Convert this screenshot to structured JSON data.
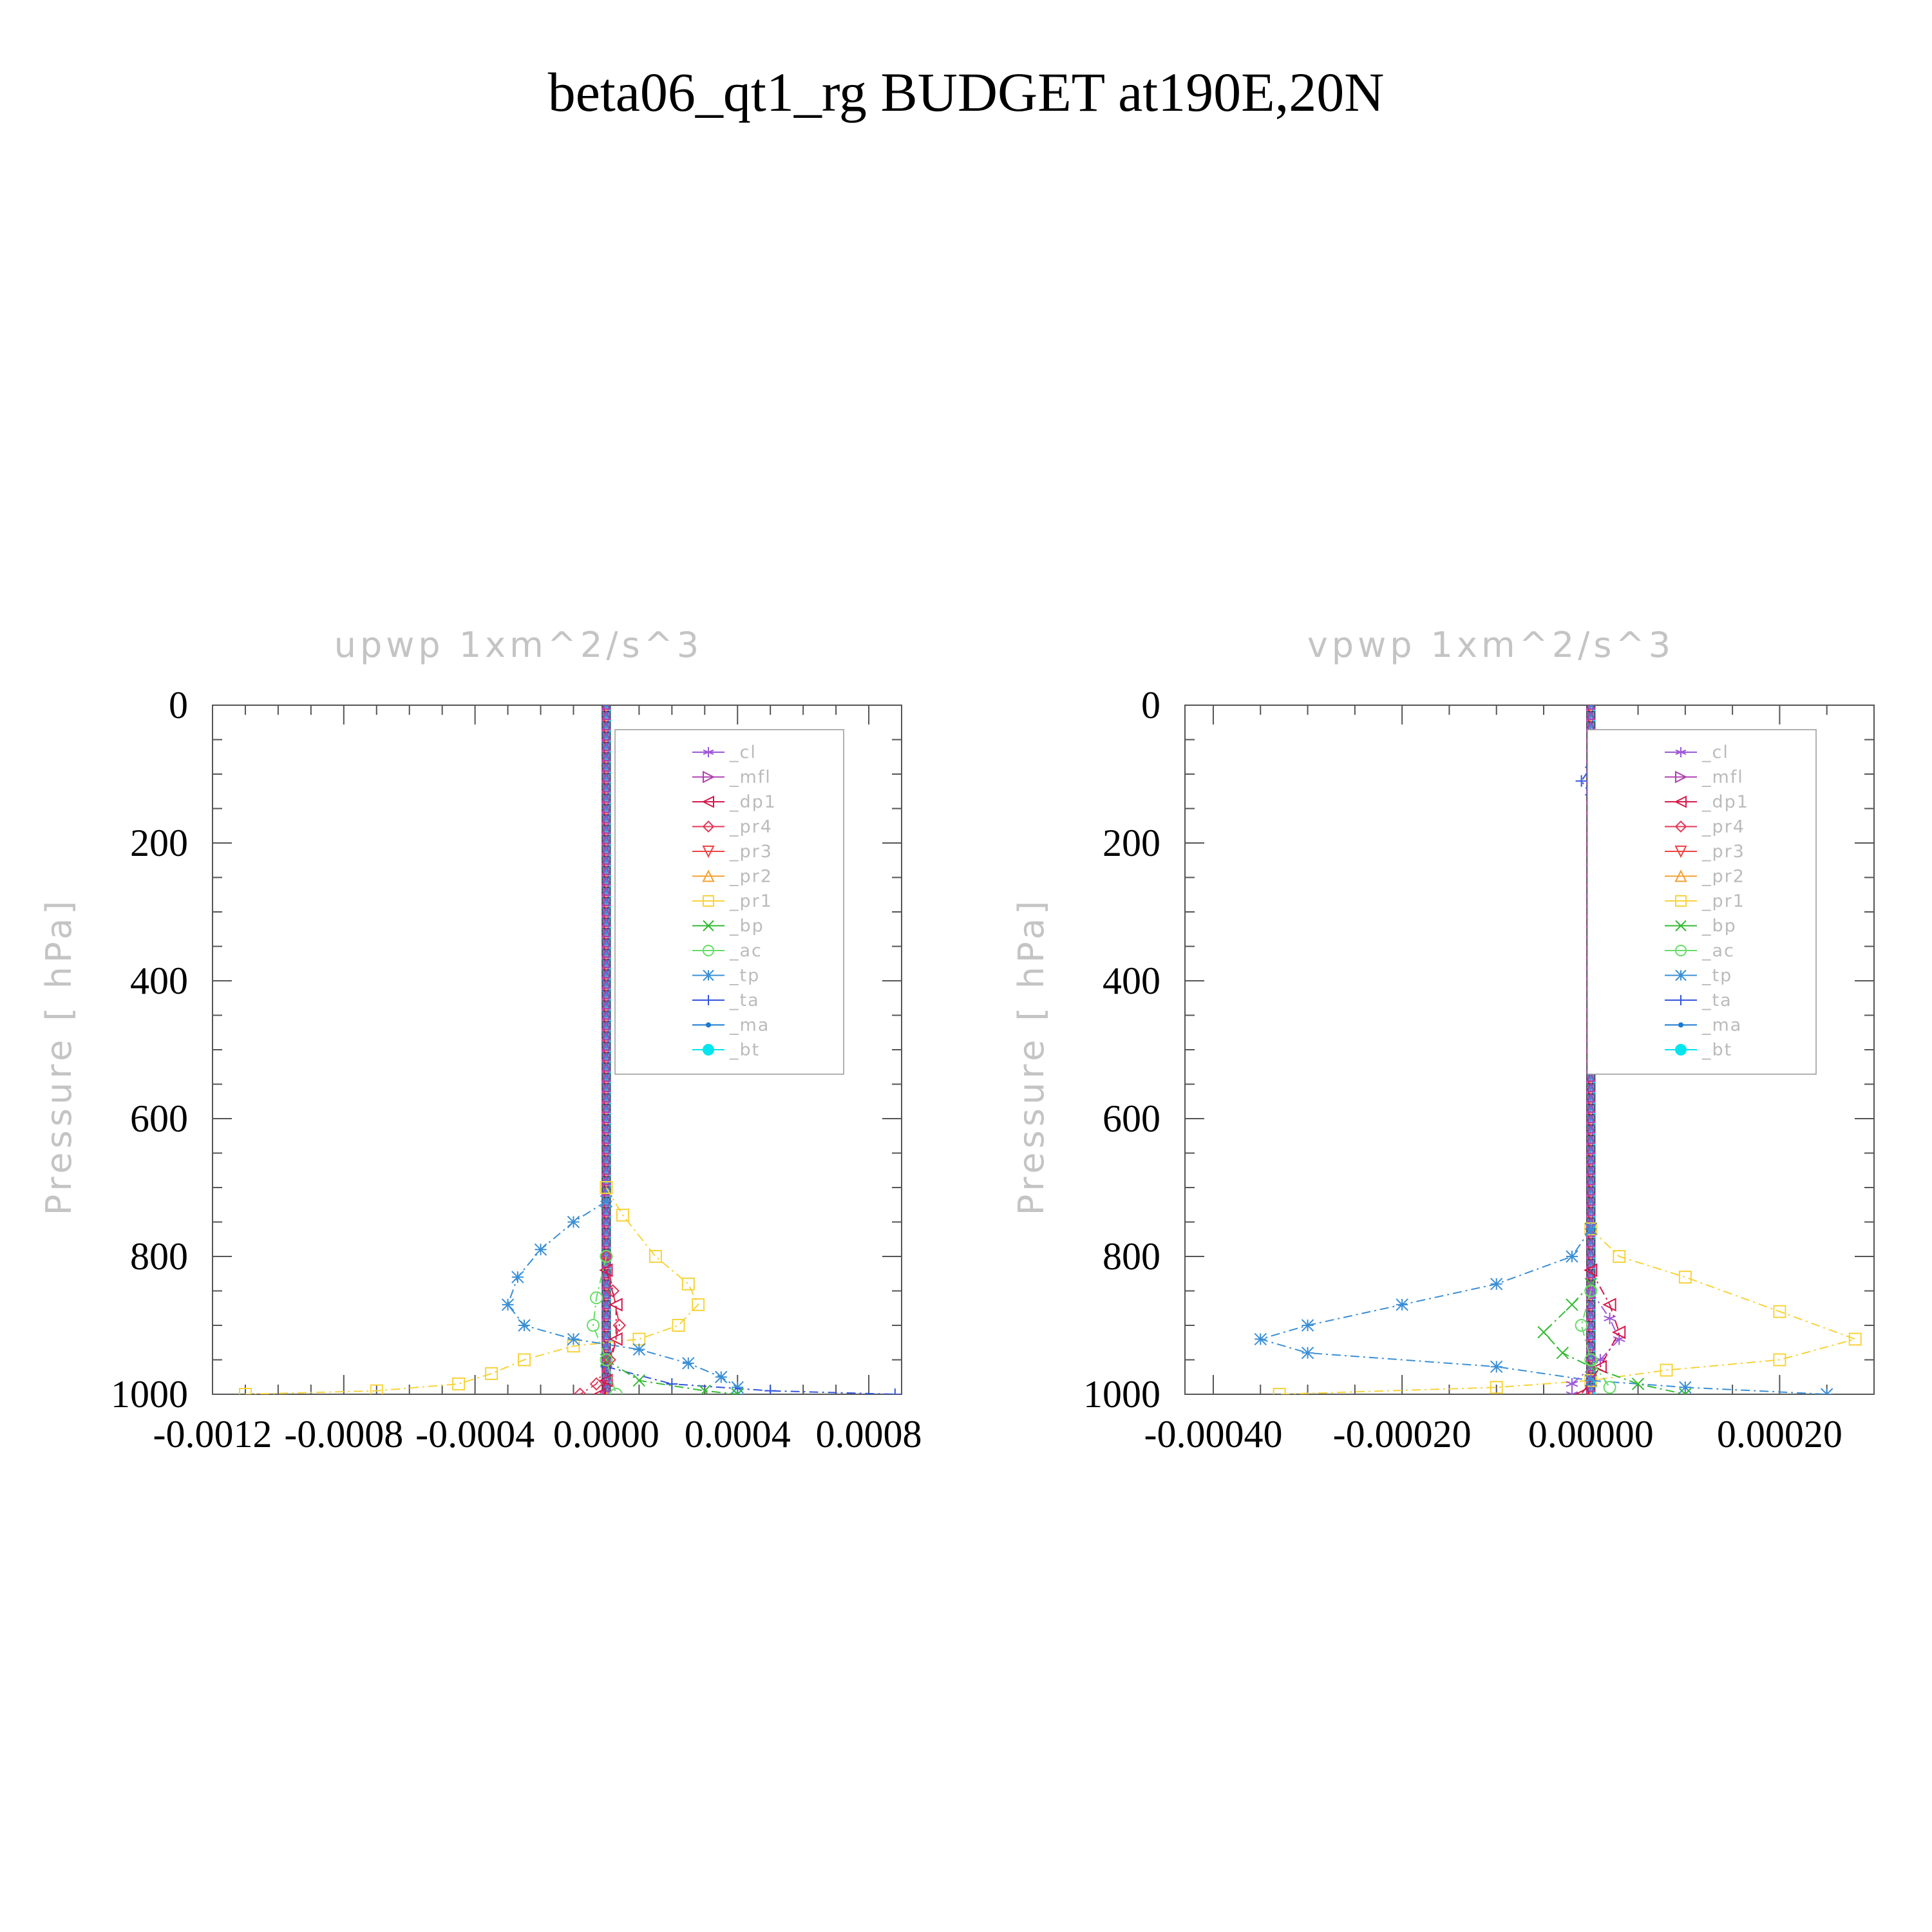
{
  "figure_title": "beta06_qt1_rg  BUDGET at190E,20N",
  "colors": {
    "_cl": "#9b59d6",
    "_mfl": "#b040b0",
    "_dp1": "#d6184a",
    "_pr4": "#e03a5a",
    "_pr3": "#ee4444",
    "_pr2": "#f5a033",
    "_pr1": "#f7d33a",
    "_bp": "#33bb33",
    "_ac": "#66dd66",
    "_tp": "#3a8fd6",
    "_ta": "#3355dd",
    "_ma": "#1a7ad0",
    "_bt": "#00e5ee"
  },
  "legend": {
    "entries": [
      {
        "key": "_cl",
        "marker": "star"
      },
      {
        "key": "_mfl",
        "marker": "tri-right"
      },
      {
        "key": "_dp1",
        "marker": "tri-left"
      },
      {
        "key": "_pr4",
        "marker": "diamond"
      },
      {
        "key": "_pr3",
        "marker": "tri-down"
      },
      {
        "key": "_pr2",
        "marker": "tri-up"
      },
      {
        "key": "_pr1",
        "marker": "square"
      },
      {
        "key": "_bp",
        "marker": "x"
      },
      {
        "key": "_ac",
        "marker": "circle"
      },
      {
        "key": "_tp",
        "marker": "asterisk"
      },
      {
        "key": "_ta",
        "marker": "plus"
      },
      {
        "key": "_ma",
        "marker": "dot"
      },
      {
        "key": "_bt",
        "marker": "filled-circle"
      }
    ]
  },
  "chart_data": [
    {
      "type": "line",
      "title": "upwp   1xm^2/s^3",
      "ylabel": "Pressure [ hPa]",
      "xlabel": "",
      "xlim": [
        -0.0012,
        0.0009
      ],
      "ylim": [
        1000,
        0
      ],
      "xticks": [
        -0.0012,
        -0.0008,
        -0.0004,
        0.0,
        0.0004,
        0.0008
      ],
      "xtick_labels": [
        "-0.0012",
        "-0.0008",
        "-0.0004",
        "0.0000",
        "0.0004",
        "0.0008"
      ],
      "yticks": [
        0,
        200,
        400,
        600,
        800,
        1000
      ],
      "ytick_labels": [
        "0",
        "200",
        "400",
        "600",
        "800",
        "1000"
      ],
      "legend_position": "upper-right",
      "series": [
        {
          "name": "_pr1",
          "points": [
            [
              0,
              700
            ],
            [
              5e-05,
              740
            ],
            [
              0.00015,
              800
            ],
            [
              0.00025,
              840
            ],
            [
              0.00028,
              870
            ],
            [
              0.00022,
              900
            ],
            [
              0.0001,
              920
            ],
            [
              -0.0001,
              930
            ],
            [
              -0.00025,
              950
            ],
            [
              -0.00035,
              970
            ],
            [
              -0.00045,
              985
            ],
            [
              -0.0007,
              995
            ],
            [
              -0.0011,
              1000
            ]
          ]
        },
        {
          "name": "_tp",
          "points": [
            [
              0,
              720
            ],
            [
              -0.0001,
              750
            ],
            [
              -0.0002,
              790
            ],
            [
              -0.00027,
              830
            ],
            [
              -0.0003,
              870
            ],
            [
              -0.00025,
              900
            ],
            [
              -0.0001,
              920
            ],
            [
              0.0001,
              935
            ],
            [
              0.00025,
              955
            ],
            [
              0.00035,
              975
            ],
            [
              0.0004,
              990
            ],
            [
              0.0004,
              1000
            ]
          ]
        },
        {
          "name": "_ta",
          "points": [
            [
              0,
              960
            ],
            [
              0.0002,
              985
            ],
            [
              0.0005,
              995
            ],
            [
              0.00088,
              1000
            ]
          ]
        },
        {
          "name": "_bp",
          "points": [
            [
              0,
              950
            ],
            [
              0.0001,
              980
            ],
            [
              0.0003,
              995
            ],
            [
              0.0004,
              1000
            ]
          ]
        },
        {
          "name": "_pr4",
          "points": [
            [
              0,
              800
            ],
            [
              2e-05,
              850
            ],
            [
              4e-05,
              900
            ],
            [
              1e-05,
              950
            ],
            [
              -3e-05,
              985
            ],
            [
              -8e-05,
              1000
            ]
          ]
        },
        {
          "name": "_dp1",
          "points": [
            [
              0,
              820
            ],
            [
              3e-05,
              870
            ],
            [
              3e-05,
              920
            ],
            [
              0,
              980
            ],
            [
              -2e-05,
              1000
            ]
          ]
        },
        {
          "name": "_ac",
          "points": [
            [
              0,
              800
            ],
            [
              -3e-05,
              860
            ],
            [
              -4e-05,
              900
            ],
            [
              0,
              950
            ],
            [
              3e-05,
              1000
            ]
          ]
        }
      ]
    },
    {
      "type": "line",
      "title": "vpwp   1xm^2/s^3",
      "ylabel": "Pressure [ hPa]",
      "xlabel": "",
      "xlim": [
        -0.00043,
        0.0003
      ],
      "ylim": [
        1000,
        0
      ],
      "xticks": [
        -0.0004,
        -0.0002,
        0.0,
        0.0002
      ],
      "xtick_labels": [
        "-0.00040",
        "-0.00020",
        "0.00000",
        "0.00020"
      ],
      "yticks": [
        0,
        200,
        400,
        600,
        800,
        1000
      ],
      "ytick_labels": [
        "0",
        "200",
        "400",
        "600",
        "800",
        "1000"
      ],
      "legend_position": "upper-right",
      "series": [
        {
          "name": "_pr1",
          "points": [
            [
              0,
              760
            ],
            [
              3e-05,
              800
            ],
            [
              0.0001,
              830
            ],
            [
              0.0002,
              880
            ],
            [
              0.00028,
              920
            ],
            [
              0.0002,
              950
            ],
            [
              8e-05,
              965
            ],
            [
              0.0,
              980
            ],
            [
              -0.0001,
              990
            ],
            [
              -0.00033,
              1000
            ]
          ]
        },
        {
          "name": "_tp",
          "points": [
            [
              0,
              760
            ],
            [
              -2e-05,
              800
            ],
            [
              -0.0001,
              840
            ],
            [
              -0.0002,
              870
            ],
            [
              -0.0003,
              900
            ],
            [
              -0.00035,
              920
            ],
            [
              -0.0003,
              940
            ],
            [
              -0.0001,
              960
            ],
            [
              0.0,
              980
            ],
            [
              0.0001,
              990
            ],
            [
              0.00025,
              1000
            ]
          ]
        },
        {
          "name": "_bp",
          "points": [
            [
              0,
              840
            ],
            [
              -2e-05,
              870
            ],
            [
              -5e-05,
              910
            ],
            [
              -3e-05,
              940
            ],
            [
              0,
              960
            ],
            [
              5e-05,
              985
            ],
            [
              0.0001,
              1000
            ]
          ]
        },
        {
          "name": "_cl",
          "points": [
            [
              0,
              850
            ],
            [
              2e-05,
              890
            ],
            [
              3e-05,
              920
            ],
            [
              1e-05,
              950
            ],
            [
              -2e-05,
              985
            ],
            [
              -2e-05,
              1000
            ]
          ]
        },
        {
          "name": "_dp1",
          "points": [
            [
              0,
              820
            ],
            [
              2e-05,
              870
            ],
            [
              3e-05,
              910
            ],
            [
              1e-05,
              960
            ],
            [
              -1e-05,
              1000
            ]
          ]
        },
        {
          "name": "_ta",
          "points": [
            [
              0,
              130
            ],
            [
              -1e-05,
              110
            ],
            [
              0,
              90
            ]
          ]
        },
        {
          "name": "_ac",
          "points": [
            [
              0,
              850
            ],
            [
              -1e-05,
              900
            ],
            [
              0,
              950
            ],
            [
              2e-05,
              990
            ]
          ]
        }
      ]
    }
  ]
}
